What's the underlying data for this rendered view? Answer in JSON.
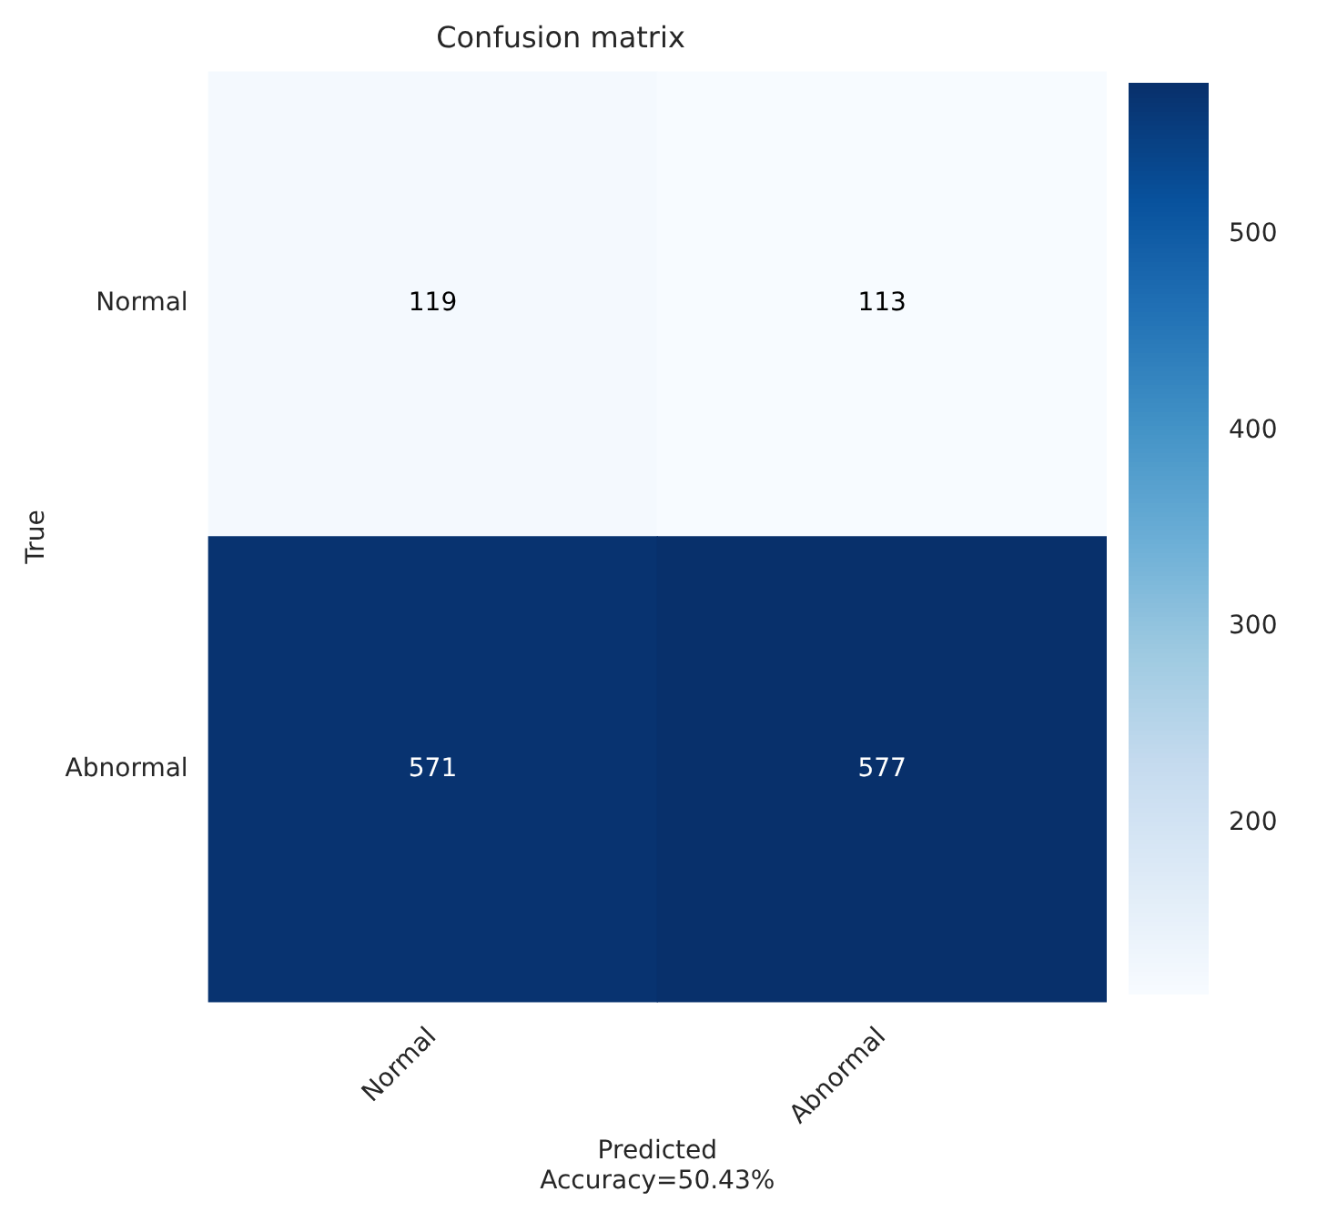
{
  "chart_data": {
    "type": "heatmap",
    "title": "Confusion matrix",
    "xlabel": "Predicted",
    "ylabel": "True",
    "annotations": [
      "Accuracy=50.43%"
    ],
    "categories": [
      "Normal",
      "Abnormal"
    ],
    "y_categories": [
      "Normal",
      "Abnormal"
    ],
    "cells": [
      [
        119,
        113
      ],
      [
        571,
        577
      ]
    ],
    "data_labels": true,
    "clim": [
      113,
      577
    ],
    "cticks": [
      200,
      300,
      400,
      500
    ]
  }
}
